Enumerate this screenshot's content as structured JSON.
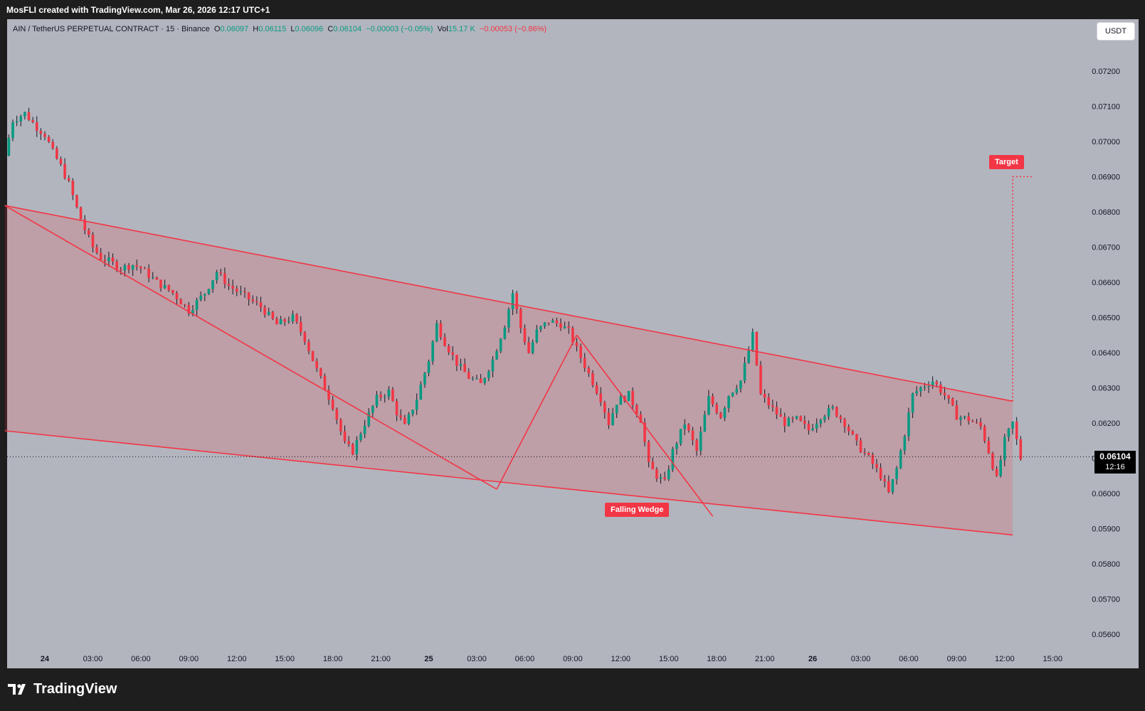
{
  "header": {
    "credit": "MosFLI created with TradingView.com, Mar 26, 2026 12:17 UTC+1"
  },
  "legend": {
    "symbol": "AIN / TetherUS PERPETUAL CONTRACT · 15 · Binance",
    "open_label": "O",
    "open": "0.06097",
    "high_label": "H",
    "high": "0.06115",
    "low_label": "L",
    "low": "0.06096",
    "close_label": "C",
    "close": "0.06104",
    "change": "−0.00003 (−0.05%)",
    "vol_label": "Vol",
    "vol": "15.17 K",
    "vol_change": "−0.00053 (−0.86%)"
  },
  "currency_button": "USDT",
  "current_price": {
    "price": "0.06104",
    "countdown": "12:16"
  },
  "annotations": {
    "target": "Target",
    "pattern": "Falling Wedge"
  },
  "brand": {
    "name": "TradingView"
  },
  "colors": {
    "up": "#089981",
    "down": "#f23645",
    "pattern": "#f23645",
    "background": "#b2b5be",
    "frame": "#1e1e1e"
  },
  "chart_data": {
    "type": "candlestick",
    "y_ticks": [
      "0.07200",
      "0.07100",
      "0.07000",
      "0.06900",
      "0.06800",
      "0.06700",
      "0.06600",
      "0.06500",
      "0.06400",
      "0.06300",
      "0.06200",
      "0.06100",
      "0.06000",
      "0.05900",
      "0.05800",
      "0.05700",
      "0.05600"
    ],
    "ylim": [
      0.0553,
      0.0735
    ],
    "x_ticks": [
      {
        "label": "24",
        "bold": true,
        "bar": 0
      },
      {
        "label": "03:00",
        "bar": 12
      },
      {
        "label": "06:00",
        "bar": 24
      },
      {
        "label": "09:00",
        "bar": 36
      },
      {
        "label": "12:00",
        "bar": 48
      },
      {
        "label": "15:00",
        "bar": 60
      },
      {
        "label": "18:00",
        "bar": 72
      },
      {
        "label": "21:00",
        "bar": 84
      },
      {
        "label": "25",
        "bold": true,
        "bar": 96
      },
      {
        "label": "03:00",
        "bar": 108
      },
      {
        "label": "06:00",
        "bar": 120
      },
      {
        "label": "09:00",
        "bar": 132
      },
      {
        "label": "12:00",
        "bar": 144
      },
      {
        "label": "15:00",
        "bar": 156
      },
      {
        "label": "18:00",
        "bar": 168
      },
      {
        "label": "21:00",
        "bar": 180
      },
      {
        "label": "26",
        "bold": true,
        "bar": 192
      },
      {
        "label": "03:00",
        "bar": 204
      },
      {
        "label": "06:00",
        "bar": 216
      },
      {
        "label": "09:00",
        "bar": 228
      },
      {
        "label": "12:00",
        "bar": 240
      },
      {
        "label": "15:00",
        "bar": 252
      }
    ],
    "pattern_lines": [
      {
        "name": "upper-trendline",
        "from": [
          -10,
          0.06818
        ],
        "to": [
          242,
          0.06262
        ]
      },
      {
        "name": "lower-trendline",
        "from": [
          -10,
          0.06178
        ],
        "to": [
          242,
          0.05882
        ]
      },
      {
        "name": "zigzag-leg-1",
        "from": [
          -10,
          0.06818
        ],
        "to": [
          113,
          0.06012
        ]
      },
      {
        "name": "zigzag-leg-2",
        "from": [
          113,
          0.06012
        ],
        "to": [
          133,
          0.0645
        ]
      },
      {
        "name": "zigzag-leg-3",
        "from": [
          133,
          0.0645
        ],
        "to": [
          167,
          0.05935
        ]
      },
      {
        "name": "target-projection",
        "from": [
          242,
          0.06262
        ],
        "to": [
          242,
          0.069
        ]
      },
      {
        "name": "target-tail",
        "from": [
          242,
          0.069
        ],
        "to": [
          247,
          0.069
        ]
      }
    ],
    "current_price": 0.06104
  }
}
